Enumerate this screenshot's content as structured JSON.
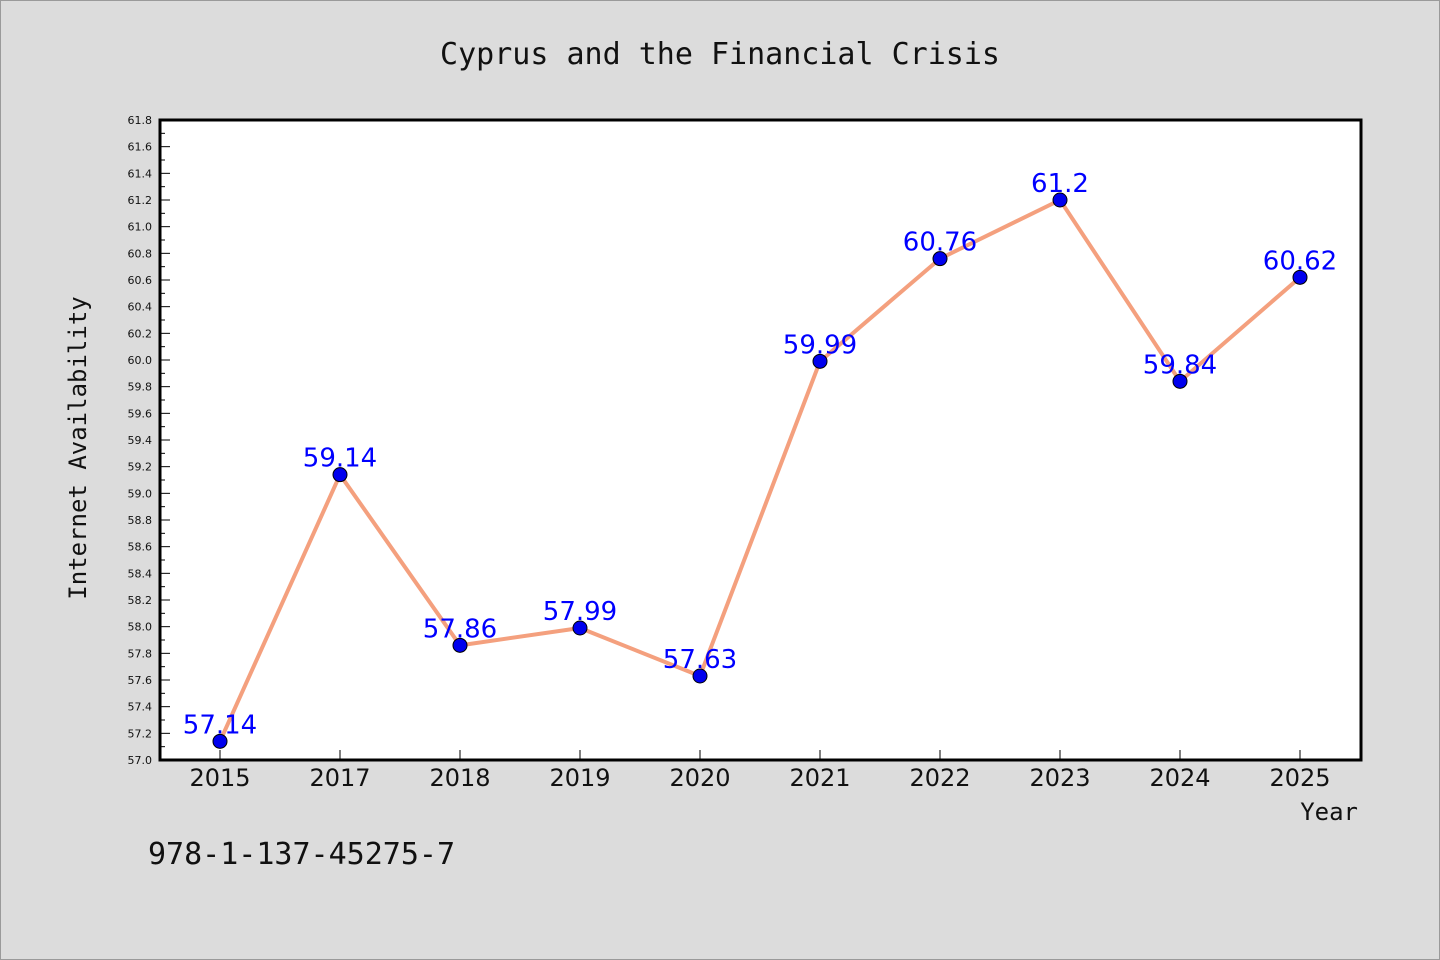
{
  "chart_data": {
    "type": "line",
    "title": "Cyprus and the Financial Crisis",
    "xlabel": "Year",
    "ylabel": "Internet Availability",
    "categories": [
      "2015",
      "2017",
      "2018",
      "2019",
      "2020",
      "2021",
      "2022",
      "2023",
      "2024",
      "2025"
    ],
    "values": [
      57.14,
      59.14,
      57.86,
      57.99,
      57.63,
      59.99,
      60.76,
      61.2,
      59.84,
      60.62
    ],
    "data_labels": [
      "57.14",
      "59.14",
      "57.86",
      "57.99",
      "57.63",
      "59.99",
      "60.76",
      "61.2",
      "59.84",
      "60.62"
    ],
    "ylim": [
      57.0,
      61.8
    ],
    "yticks": [
      "57.0",
      "57.2",
      "57.4",
      "57.6",
      "57.8",
      "58.0",
      "58.2",
      "58.4",
      "58.6",
      "58.8",
      "59.0",
      "59.2",
      "59.4",
      "59.6",
      "59.8",
      "60.0",
      "60.2",
      "60.4",
      "60.6",
      "60.8",
      "61.0",
      "61.2",
      "61.4",
      "61.6",
      "61.8"
    ],
    "grid": false,
    "line_color": "#f4a07e",
    "marker_color": "#0000ee",
    "label_color": "#0000ff"
  },
  "annotation": "978-1-137-45275-7"
}
